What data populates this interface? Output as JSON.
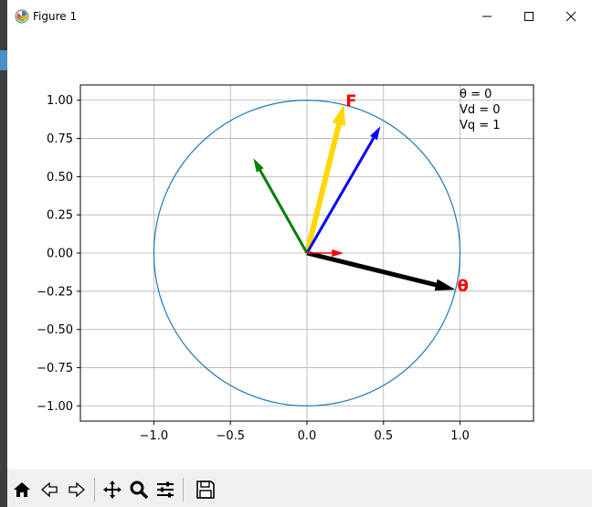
{
  "window": {
    "title": "Figure 1",
    "minimize_icon": "minimize-icon",
    "maximize_icon": "maximize-icon",
    "close_icon": "close-icon"
  },
  "plot": {
    "x_ticks": [
      "−1.0",
      "−0.5",
      "0.0",
      "0.5",
      "1.0"
    ],
    "y_ticks": [
      "1.00",
      "0.75",
      "0.50",
      "0.25",
      "0.00",
      "−0.25",
      "−0.50",
      "−0.75",
      "−1.00"
    ],
    "annotation_lines": [
      "θ = 0",
      "Vd = 0",
      "Vq = 1"
    ],
    "label_F": "F",
    "label_theta": "θ",
    "colors": {
      "circle": "#1f77b4",
      "theta_vector": "#000000",
      "force_vector": "#ffd700",
      "blue_vector": "#0000ff",
      "green_vector": "#008000",
      "red_vector": "#ff0000",
      "label_color": "#ff0000",
      "grid": "#b0b0b0"
    }
  },
  "chart_data": {
    "type": "scatter",
    "title": "",
    "xlabel": "",
    "ylabel": "",
    "xlim": [
      -1.48,
      1.48
    ],
    "ylim": [
      -1.1,
      1.1
    ],
    "grid": true,
    "circle": {
      "center": [
        0,
        0
      ],
      "radius": 1
    },
    "vectors": [
      {
        "color": "black",
        "x": 0.97,
        "y": -0.24
      },
      {
        "color": "gold",
        "x": 0.24,
        "y": 0.97
      },
      {
        "color": "blue",
        "x": 0.48,
        "y": 0.83
      },
      {
        "color": "green",
        "x": -0.35,
        "y": 0.62
      },
      {
        "color": "red",
        "x": 0.24,
        "y": 0.0
      }
    ],
    "annotations": [
      "θ = 0",
      "Vd = 0",
      "Vq = 1"
    ]
  },
  "toolbar": {
    "buttons": [
      "home-icon",
      "back-icon",
      "forward-icon",
      "pan-icon",
      "zoom-icon",
      "configure-subplots-icon",
      "save-icon"
    ]
  }
}
